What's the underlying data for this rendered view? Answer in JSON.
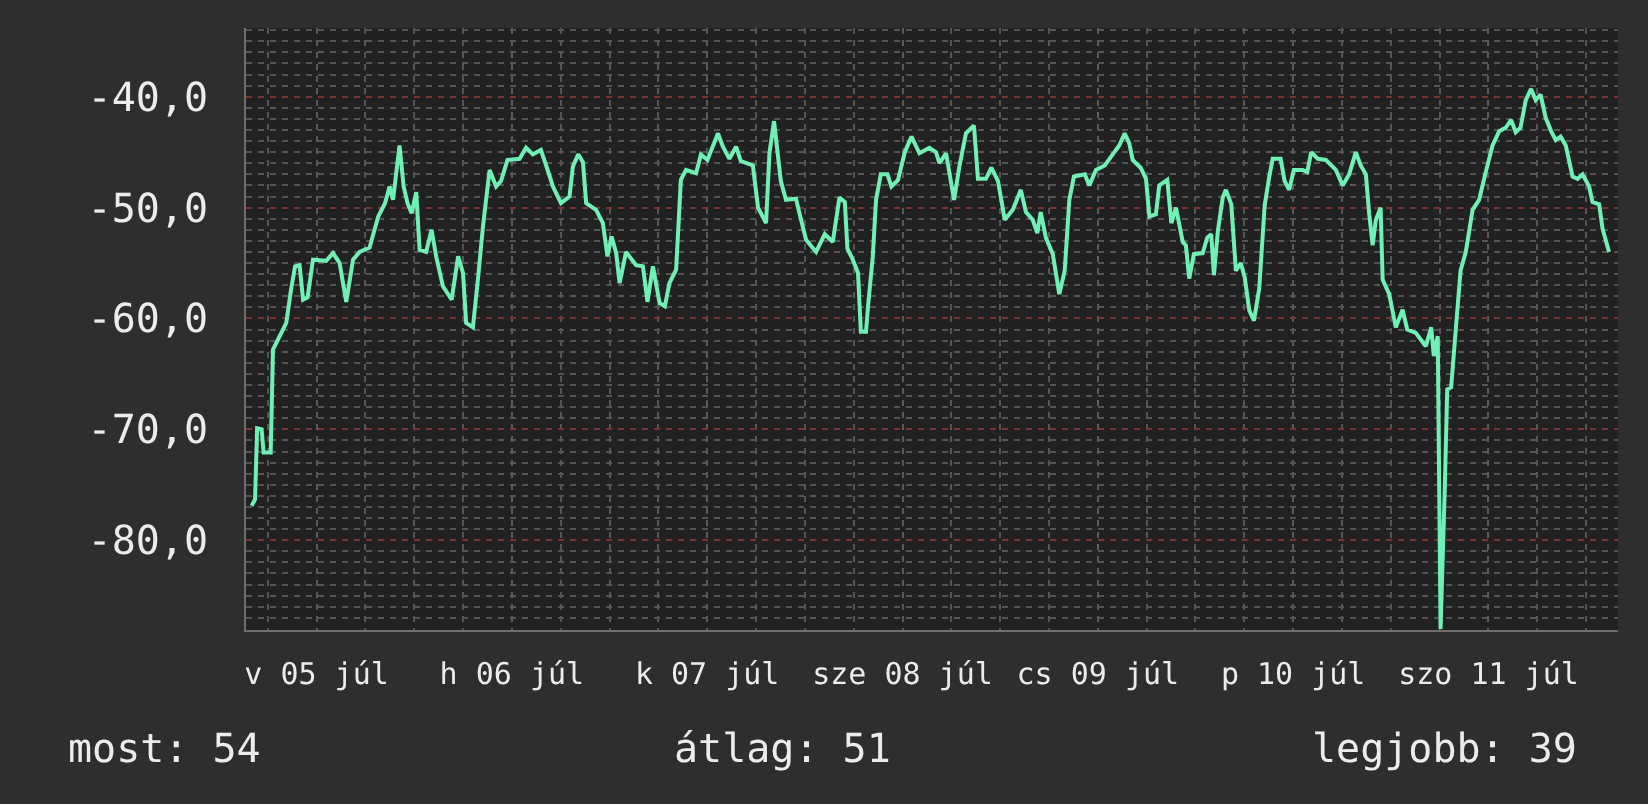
{
  "chart_data": {
    "type": "line",
    "x": [
      "--07-05T04:02",
      "--07-05T04:27",
      "--07-05T04:42",
      "--07-05T05:15",
      "--07-05T05:30",
      "--07-05T06:22",
      "--07-05T06:39",
      "--07-05T08:17",
      "--07-05T08:52",
      "--07-05T09:22",
      "--07-05T09:55",
      "--07-05T10:21",
      "--07-05T10:54",
      "--07-05T11:34",
      "--07-05T13:11",
      "--07-05T14:02",
      "--07-05T14:50",
      "--07-05T15:39",
      "--07-05T16:29",
      "--07-05T17:18",
      "--07-05T18:31",
      "--07-05T19:35",
      "--07-05T20:25",
      "--07-05T20:59",
      "--07-05T21:24",
      "--07-05T22:12",
      "--07-05T22:42",
      "--07-05T23:11",
      "--07-05T23:41",
      "--07-06T00:15",
      "--07-06T00:40",
      "--07-06T01:28",
      "--07-06T02:08",
      "--07-06T02:42",
      "--07-06T03:32",
      "--07-06T04:36",
      "--07-06T05:24",
      "--07-06T06:00",
      "--07-06T06:23",
      "--07-06T07:13",
      "--07-06T07:52",
      "--07-06T08:27",
      "--07-06T09:16",
      "--07-06T10:04",
      "--07-06T10:40",
      "--07-06T11:28",
      "--07-06T12:57",
      "--07-06T13:45",
      "--07-06T14:35",
      "--07-06T15:34",
      "--07-06T16:13",
      "--07-06T17:03",
      "--07-06T18:02",
      "--07-06T19:05",
      "--07-06T19:30",
      "--07-06T20:09",
      "--07-06T20:44",
      "--07-06T21:08",
      "--07-06T22:21",
      "--07-06T23:11",
      "--07-06T23:45",
      "--07-07T00:15",
      "--07-07T00:49",
      "--07-07T01:14",
      "--07-07T02:02",
      "--07-07T03:16",
      "--07-07T04:06",
      "--07-07T04:40",
      "--07-07T05:20",
      "--07-07T06:09",
      "--07-07T06:48",
      "--07-07T07:22",
      "--07-07T08:11",
      "--07-07T08:46",
      "--07-07T09:24",
      "--07-07T10:38",
      "--07-07T11:14",
      "--07-07T12:02",
      "--07-07T13:20",
      "--07-07T13:56",
      "--07-07T14:44",
      "--07-07T15:33",
      "--07-07T16:08",
      "--07-07T17:37",
      "--07-07T18:15",
      "--07-07T19:14",
      "--07-07T19:39",
      "--07-07T20:13",
      "--07-07T21:03",
      "--07-07T21:41",
      "--07-07T22:55",
      "--07-07T23:20",
      "--07-08T00:09",
      "--07-08T01:23",
      "--07-08T02:27",
      "--07-08T03:26",
      "--07-08T04:15",
      "--07-08T04:55",
      "--07-08T05:14",
      "--07-08T05:54",
      "--07-08T06:32",
      "--07-08T06:53",
      "--07-08T07:31",
      "--07-08T07:46",
      "--07-08T08:21",
      "--07-08T08:45",
      "--07-08T09:20",
      "--07-08T10:09",
      "--07-08T10:38",
      "--07-08T11:27",
      "--07-08T12:17",
      "--07-08T13:06",
      "--07-08T14:05",
      "--07-08T15:18",
      "--07-08T16:07",
      "--07-08T16:32",
      "--07-08T17:21",
      "--07-08T18:20",
      "--07-08T18:59",
      "--07-08T19:48",
      "--07-08T20:47",
      "--07-08T21:16",
      "--07-08T22:15",
      "--07-08T22:55",
      "--07-08T23:44",
      "--07-09T00:34",
      "--07-09T01:33",
      "--07-09T02:32",
      "--07-09T03:10",
      "--07-09T04:00",
      "--07-09T04:34",
      "--07-09T04:59",
      "--07-09T05:37",
      "--07-09T06:28",
      "--07-09T07:16",
      "--07-09T07:56",
      "--07-09T08:30",
      "--07-09T09:04",
      "--07-09T10:24",
      "--07-09T10:57",
      "--07-09T11:46",
      "--07-09T12:51",
      "--07-09T13:50",
      "--07-09T14:38",
      "--07-09T15:18",
      "--07-09T15:52",
      "--07-09T16:17",
      "--07-09T17:16",
      "--07-09T17:55",
      "--07-09T18:20",
      "--07-09T19:08",
      "--07-09T19:33",
      "--07-09T20:32",
      "--07-09T21:02",
      "--07-09T21:36",
      "--07-09T22:26",
      "--07-09T22:49",
      "--07-09T23:14",
      "--07-09T23:48",
      "--07-10T00:53",
      "--07-10T01:27",
      "--07-10T01:56",
      "--07-10T02:16",
      "--07-10T02:45",
      "--07-10T03:21",
      "--07-10T03:44",
      "--07-10T04:24",
      "--07-10T04:58",
      "--07-10T05:34",
      "--07-10T06:03",
      "--07-10T06:37",
      "--07-10T07:11",
      "--07-10T07:50",
      "--07-10T08:30",
      "--07-10T09:04",
      "--07-10T09:29",
      "--07-10T10:28",
      "--07-10T10:57",
      "--07-10T11:31",
      "--07-10T12:05",
      "--07-10T13:10",
      "--07-10T13:44",
      "--07-10T14:13",
      "--07-10T15:02",
      "--07-10T16:01",
      "--07-10T17:15",
      "--07-10T18:05",
      "--07-10T18:53",
      "--07-10T19:42",
      "--07-10T20:18",
      "--07-10T20:56",
      "--07-10T21:21",
      "--07-10T21:46",
      "--07-10T22:10",
      "--07-10T22:45",
      "--07-10T23:00",
      "--07-10T23:48",
      "--07-11T00:37",
      "--07-11T01:27",
      "--07-11T02:01",
      "--07-11T03:04",
      "--07-11T04:18",
      "--07-11T04:58",
      "--07-11T05:17",
      "--07-11T05:46",
      "--07-11T06:07",
      "--07-11T06:37",
      "--07-11T06:56",
      "--07-11T07:25",
      "--07-11T07:59",
      "--07-11T08:34",
      "--07-11T09:13",
      "--07-11T10:03",
      "--07-11T10:51",
      "--07-11T11:40",
      "--07-11T12:30",
      "--07-11T13:19",
      "--07-11T14:07",
      "--07-11T14:47",
      "--07-11T15:21",
      "--07-11T15:56",
      "--07-11T16:35",
      "--07-11T17:14",
      "--07-11T17:48",
      "--07-11T18:24",
      "--07-11T19:02",
      "--07-11T19:42",
      "--07-11T20:16",
      "--07-11T20:52",
      "--07-11T21:30",
      "--07-11T22:20",
      "--07-11T22:58",
      "--07-11T23:34",
      "--07-12T00:22",
      "--07-12T00:47",
      "--07-12T01:36",
      "--07-12T02:01",
      "--07-12T02:49"
    ],
    "values": [
      -76.9,
      -76.3,
      -69.9,
      -70.0,
      -72.1,
      -72.1,
      -62.8,
      -60.4,
      -57.4,
      -55.3,
      -55.2,
      -58.3,
      -58.1,
      -54.7,
      -54.8,
      -54.1,
      -55.0,
      -58.5,
      -54.7,
      -54.0,
      -53.6,
      -50.8,
      -49.6,
      -48.1,
      -49.3,
      -44.4,
      -48.1,
      -49.6,
      -50.5,
      -48.6,
      -53.8,
      -54.0,
      -52.0,
      -54.4,
      -57.1,
      -58.3,
      -54.4,
      -55.9,
      -60.4,
      -60.8,
      -56.2,
      -51.7,
      -46.6,
      -48.1,
      -47.6,
      -45.7,
      -45.6,
      -44.6,
      -45.2,
      -44.8,
      -46.2,
      -48.1,
      -49.6,
      -49.0,
      -46.3,
      -45.2,
      -45.9,
      -49.6,
      -50.2,
      -51.4,
      -54.4,
      -52.6,
      -54.1,
      -56.8,
      -54.0,
      -55.2,
      -55.3,
      -58.5,
      -55.3,
      -58.6,
      -58.9,
      -56.8,
      -55.6,
      -47.5,
      -46.6,
      -46.9,
      -45.2,
      -45.7,
      -43.3,
      -44.5,
      -45.6,
      -44.5,
      -45.8,
      -46.2,
      -50.0,
      -51.4,
      -45.1,
      -42.2,
      -47.6,
      -49.3,
      -49.2,
      -50.5,
      -52.9,
      -54.0,
      -52.4,
      -53.1,
      -49.1,
      -49.5,
      -53.7,
      -54.7,
      -55.9,
      -61.2,
      -61.2,
      -58.9,
      -54.4,
      -49.3,
      -47.0,
      -47.0,
      -48.1,
      -47.5,
      -45.0,
      -43.6,
      -45.1,
      -44.6,
      -45.0,
      -46.0,
      -45.1,
      -49.3,
      -46.3,
      -43.3,
      -42.6,
      -47.4,
      -47.4,
      -46.4,
      -47.6,
      -51.1,
      -50.2,
      -48.4,
      -50.4,
      -51.1,
      -52.3,
      -50.4,
      -52.7,
      -54.2,
      -57.8,
      -55.7,
      -49.3,
      -47.2,
      -47.0,
      -48.0,
      -46.6,
      -46.2,
      -45.2,
      -44.4,
      -43.3,
      -44.2,
      -45.7,
      -46.4,
      -47.4,
      -50.8,
      -50.6,
      -48.0,
      -47.5,
      -51.4,
      -50.0,
      -53.1,
      -53.4,
      -56.4,
      -54.2,
      -54.1,
      -52.7,
      -52.4,
      -56.1,
      -52.1,
      -49.1,
      -48.4,
      -49.7,
      -55.7,
      -55.0,
      -56.3,
      -59.3,
      -60.2,
      -57.3,
      -49.8,
      -47.2,
      -45.6,
      -45.6,
      -47.6,
      -48.4,
      -46.6,
      -46.6,
      -46.8,
      -45.0,
      -45.6,
      -45.7,
      -46.6,
      -48.0,
      -47.0,
      -45.0,
      -46.2,
      -47.0,
      -50.6,
      -53.4,
      -51.1,
      -50.0,
      -56.5,
      -57.8,
      -60.8,
      -59.2,
      -61.0,
      -61.3,
      -62.5,
      -60.8,
      -63.4,
      -61.6,
      -88.0,
      -75.7,
      -66.4,
      -66.2,
      -61.0,
      -55.7,
      -54.0,
      -50.2,
      -49.3,
      -46.8,
      -44.4,
      -43.1,
      -42.8,
      -42.1,
      -43.2,
      -42.8,
      -40.3,
      -39.3,
      -40.3,
      -39.8,
      -41.9,
      -43.1,
      -43.9,
      -43.6,
      -44.4,
      -47.2,
      -47.4,
      -47.0,
      -48.1,
      -49.5,
      -49.7,
      -51.9,
      -54.0
    ],
    "color": "#6ff0b4",
    "xlim": [
      "--07-05T03:20",
      "--07-12T03:55"
    ],
    "xticks": [
      {
        "value": "--07-05T06:00",
        "label": null
      },
      {
        "value": "--07-05T12:00",
        "label": "v 05 júl"
      },
      {
        "value": "--07-05T18:00",
        "label": null
      },
      {
        "value": "--07-06T00:00",
        "label": null
      },
      {
        "value": "--07-06T06:00",
        "label": null
      },
      {
        "value": "--07-06T12:00",
        "label": "h 06 júl"
      },
      {
        "value": "--07-06T18:00",
        "label": null
      },
      {
        "value": "--07-07T00:00",
        "label": null
      },
      {
        "value": "--07-07T06:00",
        "label": null
      },
      {
        "value": "--07-07T12:00",
        "label": "k 07 júl"
      },
      {
        "value": "--07-07T18:00",
        "label": null
      },
      {
        "value": "--07-08T00:00",
        "label": null
      },
      {
        "value": "--07-08T06:00",
        "label": null
      },
      {
        "value": "--07-08T12:00",
        "label": "sze 08 júl"
      },
      {
        "value": "--07-08T18:00",
        "label": null
      },
      {
        "value": "--07-09T00:00",
        "label": null
      },
      {
        "value": "--07-09T06:00",
        "label": null
      },
      {
        "value": "--07-09T12:00",
        "label": "cs 09 júl"
      },
      {
        "value": "--07-09T18:00",
        "label": null
      },
      {
        "value": "--07-10T00:00",
        "label": null
      },
      {
        "value": "--07-10T06:00",
        "label": null
      },
      {
        "value": "--07-10T12:00",
        "label": "p 10 júl"
      },
      {
        "value": "--07-10T18:00",
        "label": null
      },
      {
        "value": "--07-11T00:00",
        "label": null
      },
      {
        "value": "--07-11T06:00",
        "label": null
      },
      {
        "value": "--07-11T12:00",
        "label": "szo 11 júl"
      },
      {
        "value": "--07-11T18:00",
        "label": null
      },
      {
        "value": "--07-12T00:00",
        "label": null
      }
    ],
    "ylim": [
      -88.1,
      -33.8
    ],
    "yticks": [
      {
        "value": -88,
        "label": null
      },
      {
        "value": -87,
        "label": null
      },
      {
        "value": -86,
        "label": null
      },
      {
        "value": -85,
        "label": null
      },
      {
        "value": -84,
        "label": null
      },
      {
        "value": -83,
        "label": null
      },
      {
        "value": -82,
        "label": null
      },
      {
        "value": -81,
        "label": null
      },
      {
        "value": -80,
        "label": "-80,0"
      },
      {
        "value": -79,
        "label": null
      },
      {
        "value": -78,
        "label": null
      },
      {
        "value": -77,
        "label": null
      },
      {
        "value": -76,
        "label": null
      },
      {
        "value": -75,
        "label": null
      },
      {
        "value": -74,
        "label": null
      },
      {
        "value": -73,
        "label": null
      },
      {
        "value": -72,
        "label": null
      },
      {
        "value": -71,
        "label": null
      },
      {
        "value": -70,
        "label": "-70,0"
      },
      {
        "value": -69,
        "label": null
      },
      {
        "value": -68,
        "label": null
      },
      {
        "value": -67,
        "label": null
      },
      {
        "value": -66,
        "label": null
      },
      {
        "value": -65,
        "label": null
      },
      {
        "value": -64,
        "label": null
      },
      {
        "value": -63,
        "label": null
      },
      {
        "value": -62,
        "label": null
      },
      {
        "value": -61,
        "label": null
      },
      {
        "value": -60,
        "label": "-60,0"
      },
      {
        "value": -59,
        "label": null
      },
      {
        "value": -58,
        "label": null
      },
      {
        "value": -57,
        "label": null
      },
      {
        "value": -56,
        "label": null
      },
      {
        "value": -55,
        "label": null
      },
      {
        "value": -54,
        "label": null
      },
      {
        "value": -53,
        "label": null
      },
      {
        "value": -52,
        "label": null
      },
      {
        "value": -51,
        "label": null
      },
      {
        "value": -50,
        "label": "-50,0"
      },
      {
        "value": -49,
        "label": null
      },
      {
        "value": -48,
        "label": null
      },
      {
        "value": -47,
        "label": null
      },
      {
        "value": -46,
        "label": null
      },
      {
        "value": -45,
        "label": null
      },
      {
        "value": -44,
        "label": null
      },
      {
        "value": -43,
        "label": null
      },
      {
        "value": -42,
        "label": null
      },
      {
        "value": -41,
        "label": null
      },
      {
        "value": -40,
        "label": "-40,0"
      },
      {
        "value": -39,
        "label": null
      },
      {
        "value": -38,
        "label": null
      },
      {
        "value": -37,
        "label": null
      },
      {
        "value": -36,
        "label": null
      },
      {
        "value": -35,
        "label": null
      },
      {
        "value": -34,
        "label": null
      }
    ],
    "grid": true,
    "annotations": [
      "most: 54",
      "átlag: 51",
      "legjobb: 39"
    ]
  }
}
